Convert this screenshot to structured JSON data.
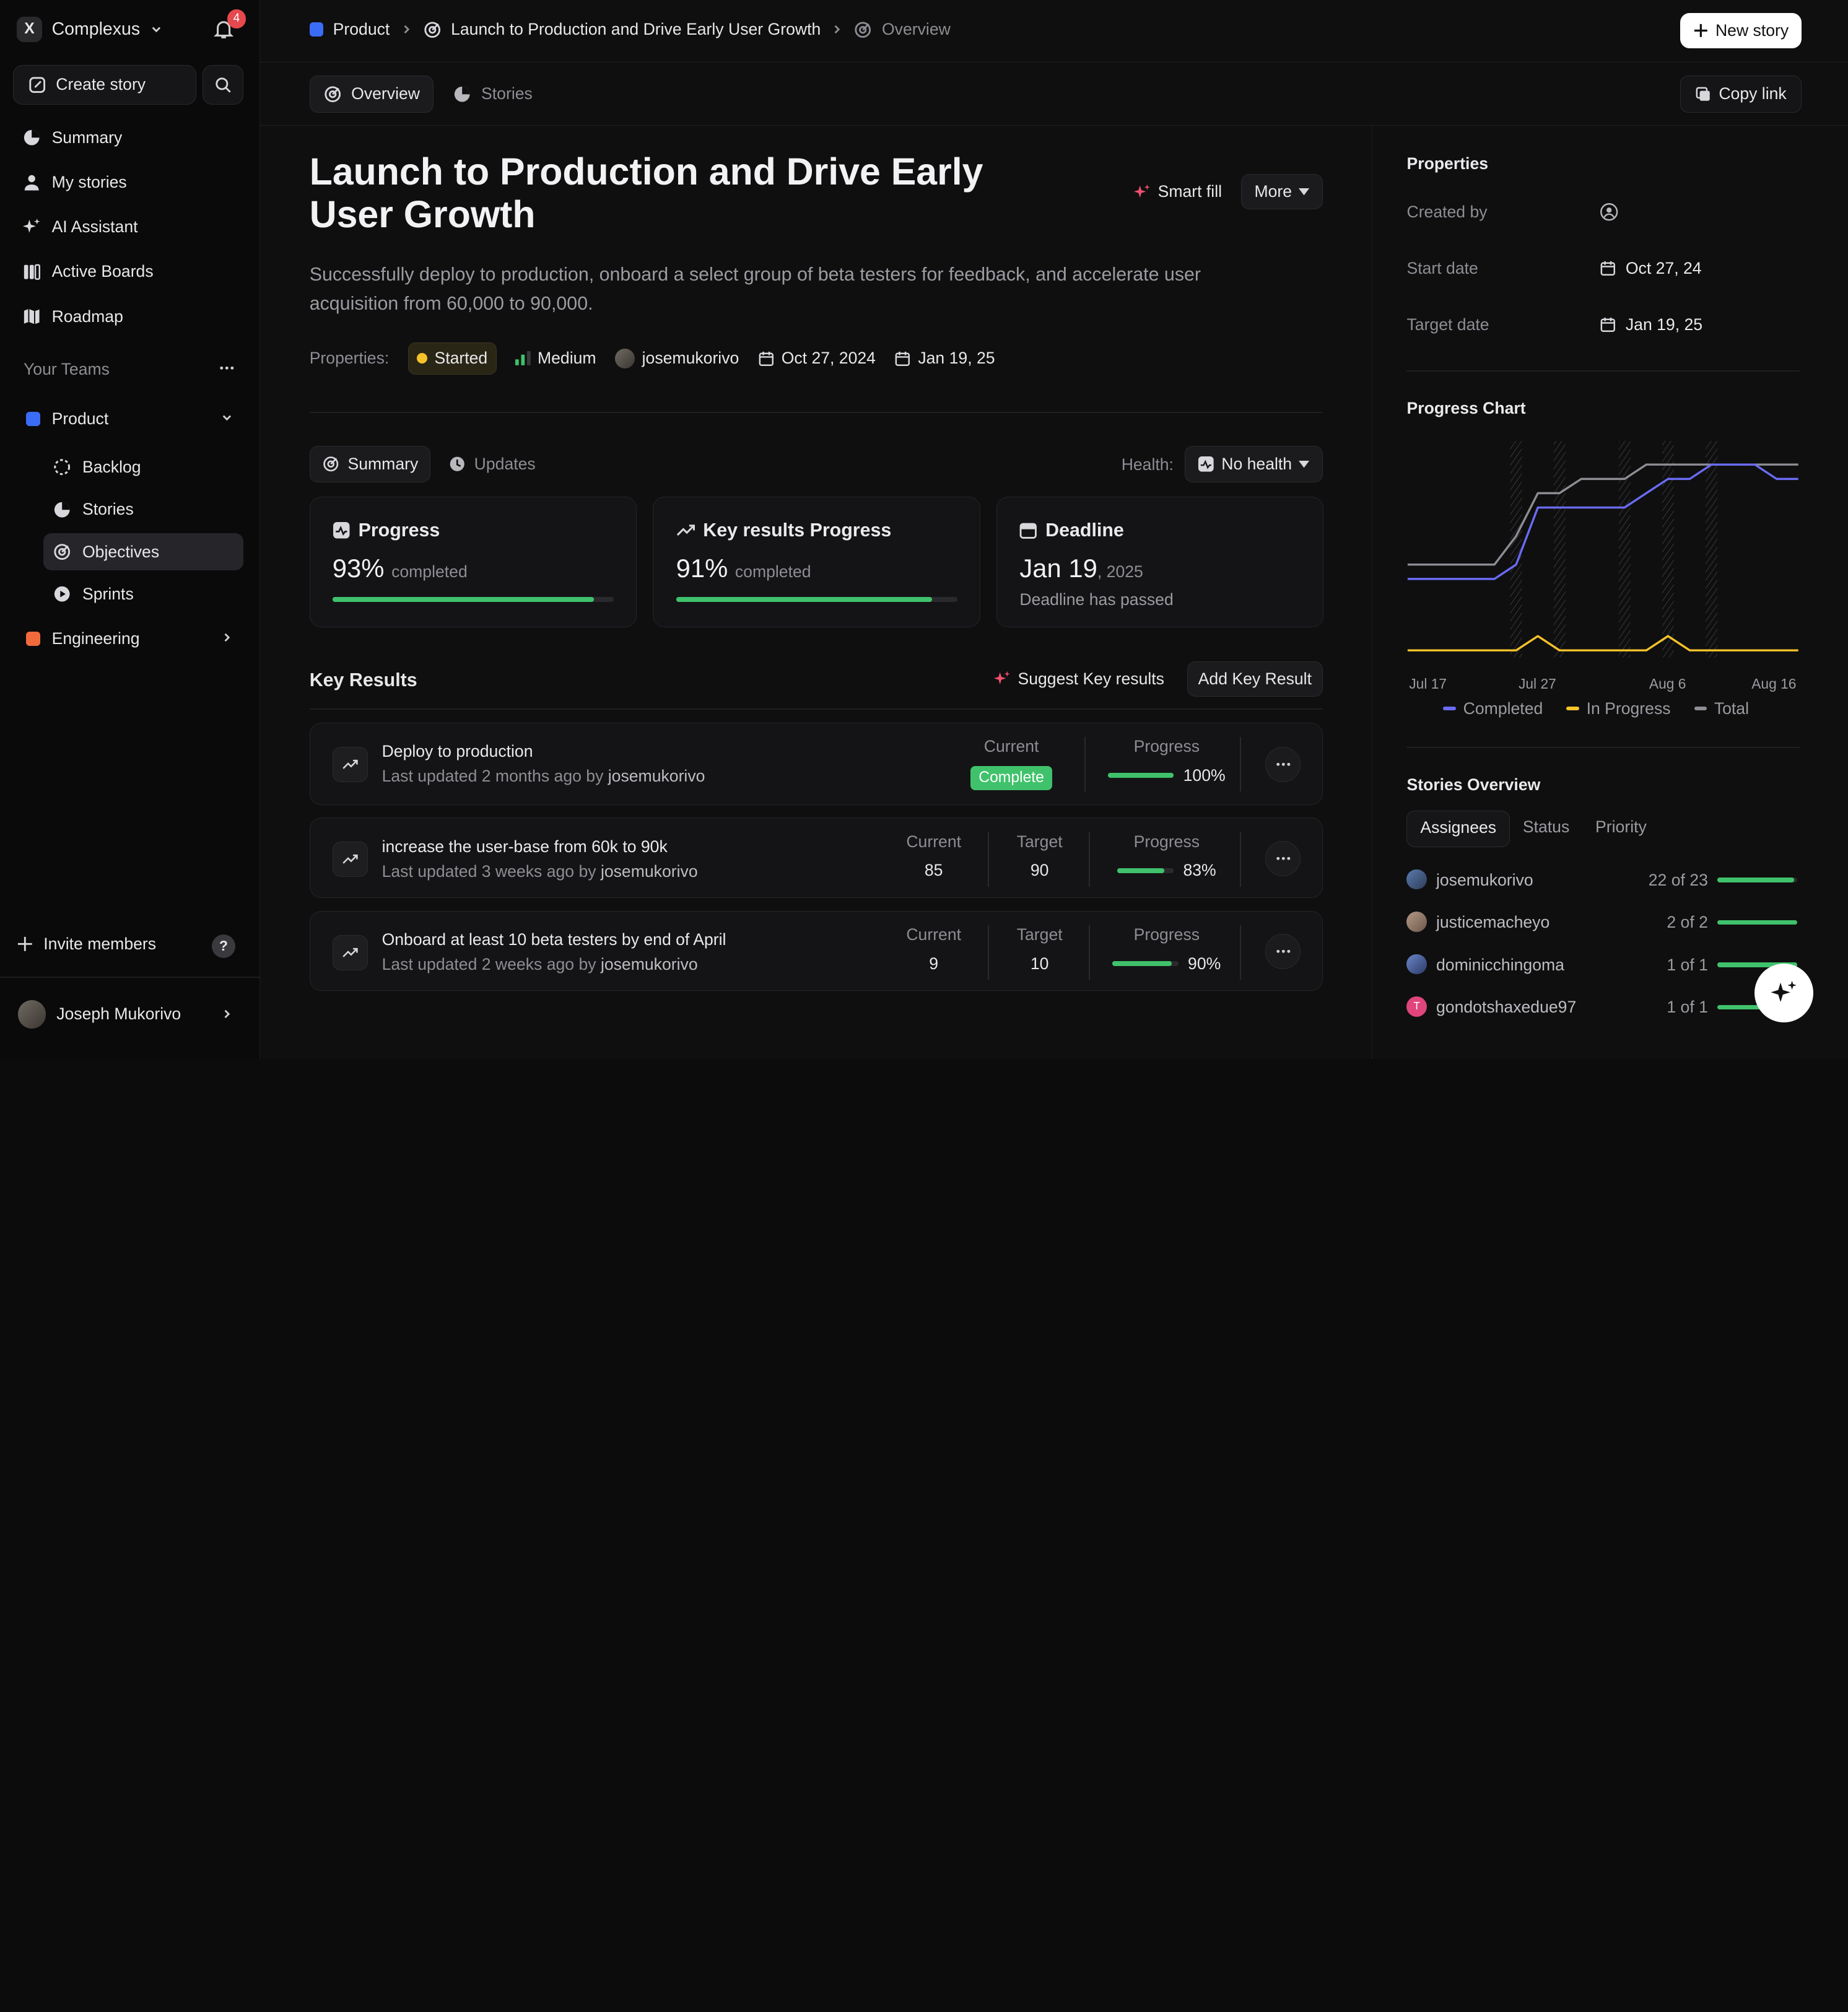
{
  "colors": {
    "accent_green": "#3fc26b",
    "product_team": "#3b6cf5",
    "engineering_team": "#f06a3c",
    "started": "#f5c22b",
    "badge_red": "#e5484d"
  },
  "sidebar": {
    "workspace": "Complexus",
    "notifications_count": "4",
    "create_story": "Create story",
    "nav": [
      {
        "label": "Summary",
        "icon": "summary-icon"
      },
      {
        "label": "My stories",
        "icon": "user-icon"
      },
      {
        "label": "AI Assistant",
        "icon": "sparkle-icon"
      },
      {
        "label": "Active Boards",
        "icon": "boards-icon"
      },
      {
        "label": "Roadmap",
        "icon": "roadmap-icon"
      }
    ],
    "teams_heading": "Your Teams",
    "teams": [
      {
        "label": "Product",
        "color": "#3b6cf5"
      },
      {
        "label": "Engineering",
        "color": "#f06a3c"
      }
    ],
    "product_sub": [
      {
        "label": "Backlog",
        "icon": "backlog-icon"
      },
      {
        "label": "Stories",
        "icon": "stories-icon"
      },
      {
        "label": "Objectives",
        "icon": "objectives-icon"
      },
      {
        "label": "Sprints",
        "icon": "sprints-icon"
      }
    ],
    "invite": "Invite members",
    "help": "?",
    "user_name": "Joseph Mukorivo"
  },
  "header": {
    "breadcrumb": [
      "Product",
      "Launch to Production and Drive Early User Growth",
      "Overview"
    ],
    "new_story": "New story",
    "tabs": [
      "Overview",
      "Stories"
    ],
    "copy_link": "Copy link"
  },
  "objective": {
    "title": "Launch to Production and Drive Early User Growth",
    "smart_fill": "Smart fill",
    "more": "More",
    "description": "Successfully deploy to production, onboard a select group of beta testers for feedback, and accelerate user acquisition from 60,000 to 90,000.",
    "properties_label": "Properties:",
    "status": "Started",
    "priority": "Medium",
    "lead": "josemukorivo",
    "start": "Oct 27, 2024",
    "end": "Jan 19, 25"
  },
  "summary": {
    "tabs": [
      "Summary",
      "Updates"
    ],
    "health_label": "Health:",
    "health_value": "No health",
    "cards": {
      "progress": {
        "title": "Progress",
        "value": "93%",
        "suffix": "completed",
        "fraction": 0.93
      },
      "kr_progress": {
        "title": "Key results Progress",
        "value": "91%",
        "suffix": "completed",
        "fraction": 0.91
      },
      "deadline": {
        "title": "Deadline",
        "date": "Jan 19",
        "year": ", 2025",
        "note": "Deadline has passed"
      }
    }
  },
  "key_results": {
    "heading": "Key Results",
    "suggest": "Suggest Key results",
    "add": "Add Key Result",
    "labels": {
      "current": "Current",
      "target": "Target",
      "progress": "Progress"
    },
    "items": [
      {
        "name": "Deploy to production",
        "meta": "Last updated 2 months ago by",
        "by": "josemukorivo",
        "current": "Complete",
        "target": "",
        "progress": "100%",
        "fraction": 1.0
      },
      {
        "name": "increase the user-base from 60k to 90k",
        "meta": "Last updated 3 weeks ago by",
        "by": "josemukorivo",
        "current": "85",
        "target": "90",
        "progress": "83%",
        "fraction": 0.83
      },
      {
        "name": "Onboard at least 10 beta testers by end of April",
        "meta": "Last updated 2 weeks ago by",
        "by": "josemukorivo",
        "current": "9",
        "target": "10",
        "progress": "90%",
        "fraction": 0.9
      }
    ]
  },
  "panel": {
    "properties_heading": "Properties",
    "created_by": "Created by",
    "start_label": "Start date",
    "start_value": "Oct 27, 24",
    "target_label": "Target date",
    "target_value": "Jan 19, 25",
    "chart_heading": "Progress Chart",
    "stories_heading": "Stories Overview",
    "stories_tabs": [
      "Assignees",
      "Status",
      "Priority"
    ],
    "assignees": [
      {
        "name": "josemukorivo",
        "count": "22 of 23",
        "fraction": 0.96
      },
      {
        "name": "justicemacheyo",
        "count": "2 of 2",
        "fraction": 1.0
      },
      {
        "name": "dominicchingoma",
        "count": "1 of 1",
        "fraction": 1.0
      },
      {
        "name": "gondotshaxedue97",
        "count": "1 of 1",
        "fraction": 1.0
      }
    ],
    "gondo_initial": "T"
  },
  "chart_data": {
    "type": "line",
    "title": "Progress Chart",
    "x": [
      "Jul 17",
      "",
      "",
      "",
      "Jul 27",
      "",
      "",
      "",
      "",
      "",
      "",
      "",
      "",
      "",
      "Aug 6",
      "",
      "",
      "",
      "Aug 16"
    ],
    "x_tick_labels": [
      "Jul 17",
      "Jul 27",
      "Aug 6",
      "Aug 16"
    ],
    "series": [
      {
        "name": "Completed",
        "color": "#6b6bf5",
        "values": [
          5,
          5,
          5,
          5,
          5,
          6,
          10,
          10,
          10,
          10,
          10,
          11,
          12,
          12,
          13,
          13,
          13,
          12,
          12
        ]
      },
      {
        "name": "In Progress",
        "color": "#f5c22b",
        "values": [
          0,
          0,
          0,
          0,
          0,
          0,
          1,
          0,
          0,
          0,
          0,
          0,
          1,
          0,
          0,
          0,
          0,
          0,
          0
        ]
      },
      {
        "name": "Total",
        "color": "#8d8d93",
        "values": [
          6,
          6,
          6,
          6,
          6,
          8,
          11,
          11,
          12,
          12,
          12,
          13,
          13,
          13,
          13,
          13,
          13,
          13,
          13
        ]
      }
    ],
    "ylim": [
      0,
      14
    ],
    "grid": "hatched vertical bands",
    "legend": "bottom"
  }
}
